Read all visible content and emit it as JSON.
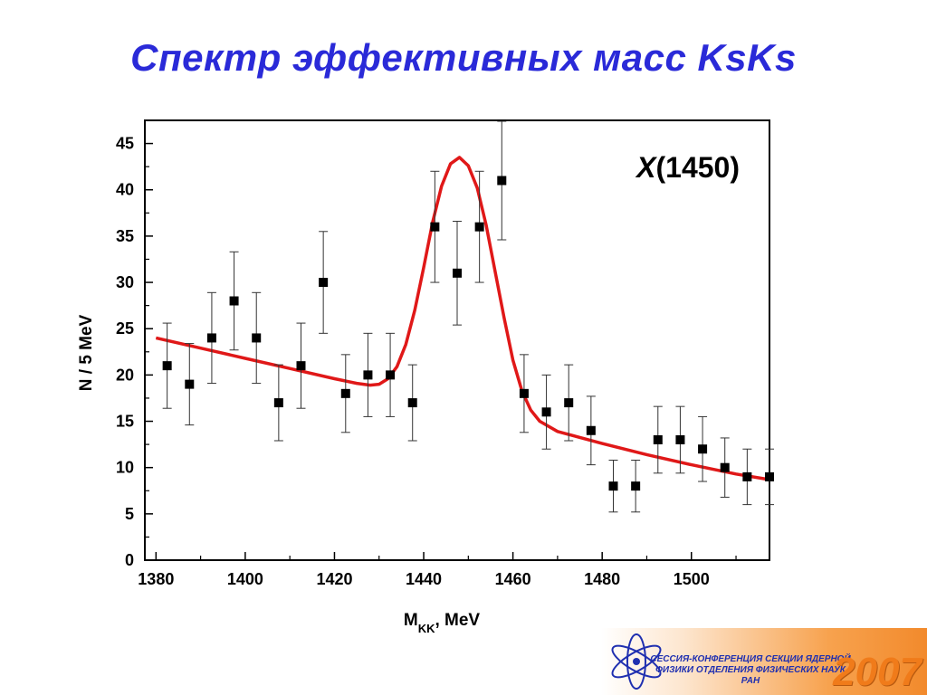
{
  "slide": {
    "title": "Спектр эффективных масс KsKs"
  },
  "chart_data": {
    "type": "scatter",
    "annotation_main": "X",
    "annotation_rest": "(1450)",
    "xlabel_main": "M",
    "xlabel_sub": "KK",
    "xlabel_rest": ", MeV",
    "ylabel": "N / 5 MeV",
    "xlim": [
      1377.5,
      1517.5
    ],
    "ylim": [
      0,
      47.5
    ],
    "x_ticks": [
      1380,
      1400,
      1420,
      1440,
      1460,
      1480,
      1500
    ],
    "y_ticks": [
      0,
      5,
      10,
      15,
      20,
      25,
      30,
      35,
      40,
      45
    ],
    "grid": false,
    "series": [
      {
        "type": "scatter_with_errors",
        "marker": "square",
        "color": "#000000",
        "x": [
          1382.5,
          1387.5,
          1392.5,
          1397.5,
          1402.5,
          1407.5,
          1412.5,
          1417.5,
          1422.5,
          1427.5,
          1432.5,
          1437.5,
          1442.5,
          1447.5,
          1452.5,
          1457.5,
          1462.5,
          1467.5,
          1472.5,
          1477.5,
          1482.5,
          1487.5,
          1492.5,
          1497.5,
          1502.5,
          1507.5,
          1512.5,
          1517.5
        ],
        "y": [
          21,
          19,
          24,
          28,
          24,
          17,
          21,
          30,
          18,
          20,
          20,
          17,
          36,
          31,
          36,
          41,
          18,
          16,
          17,
          14,
          8,
          8,
          13,
          13,
          12,
          10,
          9,
          9
        ],
        "err": [
          4.6,
          4.4,
          4.9,
          5.3,
          4.9,
          4.1,
          4.6,
          5.5,
          4.2,
          4.5,
          4.5,
          4.1,
          6.0,
          5.6,
          6.0,
          6.4,
          4.2,
          4.0,
          4.1,
          3.7,
          2.8,
          2.8,
          3.6,
          3.6,
          3.5,
          3.2,
          3.0,
          3.0
        ]
      },
      {
        "type": "fit_curve",
        "color": "#e01818",
        "x": [
          1380,
          1390,
          1400,
          1410,
          1420,
          1425,
          1428,
          1430,
          1432,
          1434,
          1436,
          1438,
          1440,
          1442,
          1444,
          1446,
          1448,
          1450,
          1452,
          1454,
          1456,
          1458,
          1460,
          1462,
          1464,
          1466,
          1470,
          1480,
          1490,
          1500,
          1510,
          1517.5
        ],
        "y": [
          24,
          22.9,
          21.8,
          20.7,
          19.6,
          19.1,
          18.9,
          19.0,
          19.6,
          20.9,
          23.3,
          27.0,
          31.6,
          36.5,
          40.4,
          42.8,
          43.5,
          42.6,
          40.2,
          36.2,
          31.2,
          26.2,
          21.6,
          18.3,
          16.2,
          15.0,
          13.9,
          12.6,
          11.4,
          10.3,
          9.3,
          8.7
        ]
      }
    ]
  },
  "banner": {
    "line1": "СЕССИЯ-КОНФЕРЕНЦИЯ СЕКЦИИ ЯДЕРНОЙ",
    "line2": "ФИЗИКИ ОТДЕЛЕНИЯ ФИЗИЧЕСКИХ НАУК",
    "line3": "РАН",
    "year": "2007",
    "icon": "atom-icon"
  }
}
